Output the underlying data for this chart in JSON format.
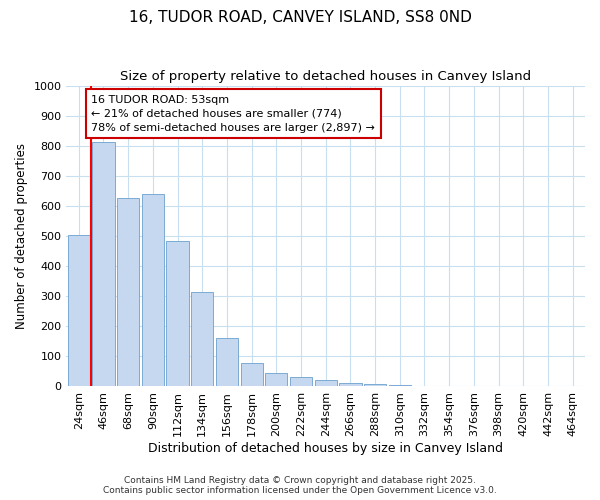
{
  "title": "16, TUDOR ROAD, CANVEY ISLAND, SS8 0ND",
  "subtitle": "Size of property relative to detached houses in Canvey Island",
  "xlabel": "Distribution of detached houses by size in Canvey Island",
  "ylabel": "Number of detached properties",
  "categories": [
    "24sqm",
    "46sqm",
    "68sqm",
    "90sqm",
    "112sqm",
    "134sqm",
    "156sqm",
    "178sqm",
    "200sqm",
    "222sqm",
    "244sqm",
    "266sqm",
    "288sqm",
    "310sqm",
    "332sqm",
    "354sqm",
    "376sqm",
    "398sqm",
    "420sqm",
    "442sqm",
    "464sqm"
  ],
  "values": [
    505,
    812,
    625,
    640,
    485,
    315,
    162,
    78,
    46,
    32,
    20,
    10,
    8,
    4,
    2,
    2,
    1,
    1,
    1,
    0,
    1
  ],
  "bar_color": "#c5d8f0",
  "bar_edge_color": "#7aaad4",
  "red_line_index": 1,
  "annotation_line1": "16 TUDOR ROAD: 53sqm",
  "annotation_line2": "← 21% of detached houses are smaller (774)",
  "annotation_line3": "78% of semi-detached houses are larger (2,897) →",
  "annotation_box_facecolor": "#ffffff",
  "annotation_box_edgecolor": "#cc0000",
  "ylim": [
    0,
    1000
  ],
  "yticks": [
    0,
    100,
    200,
    300,
    400,
    500,
    600,
    700,
    800,
    900,
    1000
  ],
  "background_color": "#ffffff",
  "grid_color": "#c8dff0",
  "footer_line1": "Contains HM Land Registry data © Crown copyright and database right 2025.",
  "footer_line2": "Contains public sector information licensed under the Open Government Licence v3.0.",
  "title_fontsize": 11,
  "subtitle_fontsize": 9.5,
  "xlabel_fontsize": 9,
  "ylabel_fontsize": 8.5,
  "tick_fontsize": 8,
  "annotation_fontsize": 8,
  "footer_fontsize": 6.5
}
